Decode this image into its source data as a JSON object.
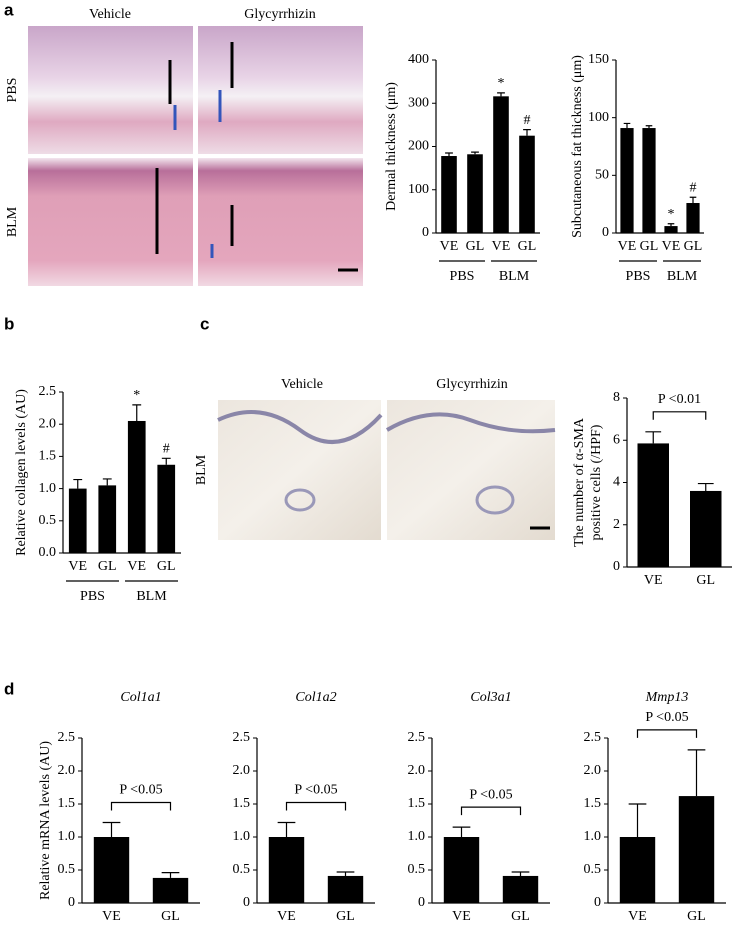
{
  "panels": {
    "a": {
      "label": "a",
      "columns": [
        "Vehicle",
        "Glycyrrhizin"
      ],
      "rows": [
        "PBS",
        "BLM"
      ]
    },
    "b": {
      "label": "b"
    },
    "c": {
      "label": "c",
      "columns": [
        "Vehicle",
        "Glycyrrhizin"
      ],
      "row": "BLM"
    },
    "d": {
      "label": "d"
    }
  },
  "chart_data": [
    {
      "type": "bar",
      "ylabel": "Dermal thickness (μm)",
      "categories": [
        "VE",
        "GL",
        "VE",
        "GL"
      ],
      "groups": [
        "PBS",
        "BLM"
      ],
      "values": [
        178,
        182,
        316,
        225
      ],
      "errors": [
        7,
        5,
        8,
        14
      ],
      "markers": [
        null,
        null,
        "*",
        "#"
      ],
      "color": "#000000",
      "ylim": [
        0,
        400
      ],
      "yticks": [
        0,
        100,
        200,
        300,
        400
      ]
    },
    {
      "type": "bar",
      "ylabel": "Subcutaneous fat  thickness (μm)",
      "categories": [
        "VE",
        "GL",
        "VE",
        "GL"
      ],
      "groups": [
        "PBS",
        "BLM"
      ],
      "values": [
        91,
        91,
        6,
        26
      ],
      "errors": [
        4,
        2,
        2,
        5
      ],
      "markers": [
        null,
        null,
        "*",
        "#"
      ],
      "color": "#000000",
      "ylim": [
        0,
        150
      ],
      "yticks": [
        0,
        50,
        100,
        150
      ]
    },
    {
      "type": "bar",
      "ylabel": "Relative collagen levels (AU)",
      "categories": [
        "VE",
        "GL",
        "VE",
        "GL"
      ],
      "groups": [
        "PBS",
        "BLM"
      ],
      "values": [
        1.0,
        1.05,
        2.05,
        1.37
      ],
      "errors": [
        0.14,
        0.1,
        0.25,
        0.1
      ],
      "markers": [
        null,
        null,
        "*",
        "#"
      ],
      "color": "#000000",
      "ylim": [
        0,
        2.5
      ],
      "yticks": [
        {
          "value": 0,
          "label": "0.0"
        },
        0.5,
        {
          "value": 1,
          "label": "1.0"
        },
        1.5,
        {
          "value": 2,
          "label": "2.0"
        },
        2.5
      ]
    },
    {
      "type": "bar",
      "ylabel": [
        "The number of α-SMA",
        "positive cells (/HPF)"
      ],
      "categories": [
        "VE",
        "GL"
      ],
      "values": [
        5.85,
        3.6
      ],
      "errors": [
        0.55,
        0.35
      ],
      "annotation": "P <0.01",
      "color": "#000000",
      "ylim": [
        0,
        8
      ],
      "yticks": [
        0,
        2,
        4,
        6,
        8
      ]
    },
    {
      "type": "bar",
      "title": "Col1a1",
      "ylabel": "Relative mRNA levels (AU)",
      "categories": [
        "VE",
        "GL"
      ],
      "values": [
        1.0,
        0.38
      ],
      "errors": [
        0.22,
        0.08
      ],
      "annotation": "P <0.05",
      "color": "#000000",
      "ylim": [
        0,
        2.5
      ],
      "yticks": [
        0,
        0.5,
        {
          "value": 1,
          "label": "1.0"
        },
        1.5,
        {
          "value": 2,
          "label": "2.0"
        },
        2.5
      ]
    },
    {
      "type": "bar",
      "title": "Col1a2",
      "categories": [
        "VE",
        "GL"
      ],
      "values": [
        1.0,
        0.41
      ],
      "errors": [
        0.22,
        0.06
      ],
      "annotation": "P <0.05",
      "color": "#000000",
      "ylim": [
        0,
        2.5
      ],
      "yticks": [
        0,
        0.5,
        {
          "value": 1,
          "label": "1.0"
        },
        1.5,
        {
          "value": 2,
          "label": "2.0"
        },
        2.5
      ]
    },
    {
      "type": "bar",
      "title": "Col3a1",
      "categories": [
        "VE",
        "GL"
      ],
      "values": [
        1.0,
        0.41
      ],
      "errors": [
        0.15,
        0.06
      ],
      "annotation": "P <0.05",
      "color": "#000000",
      "ylim": [
        0,
        2.5
      ],
      "yticks": [
        0,
        0.5,
        {
          "value": 1,
          "label": "1.0"
        },
        1.5,
        {
          "value": 2,
          "label": "2.0"
        },
        2.5
      ]
    },
    {
      "type": "bar",
      "title": "Mmp13",
      "categories": [
        "VE",
        "GL"
      ],
      "values": [
        1.0,
        1.62
      ],
      "errors": [
        0.5,
        0.7
      ],
      "annotation": "P <0.05",
      "color": "#000000",
      "ylim": [
        0,
        2.5
      ],
      "yticks": [
        0,
        0.5,
        {
          "value": 1,
          "label": "1.0"
        },
        1.5,
        {
          "value": 2,
          "label": "2.0"
        },
        2.5
      ]
    }
  ]
}
